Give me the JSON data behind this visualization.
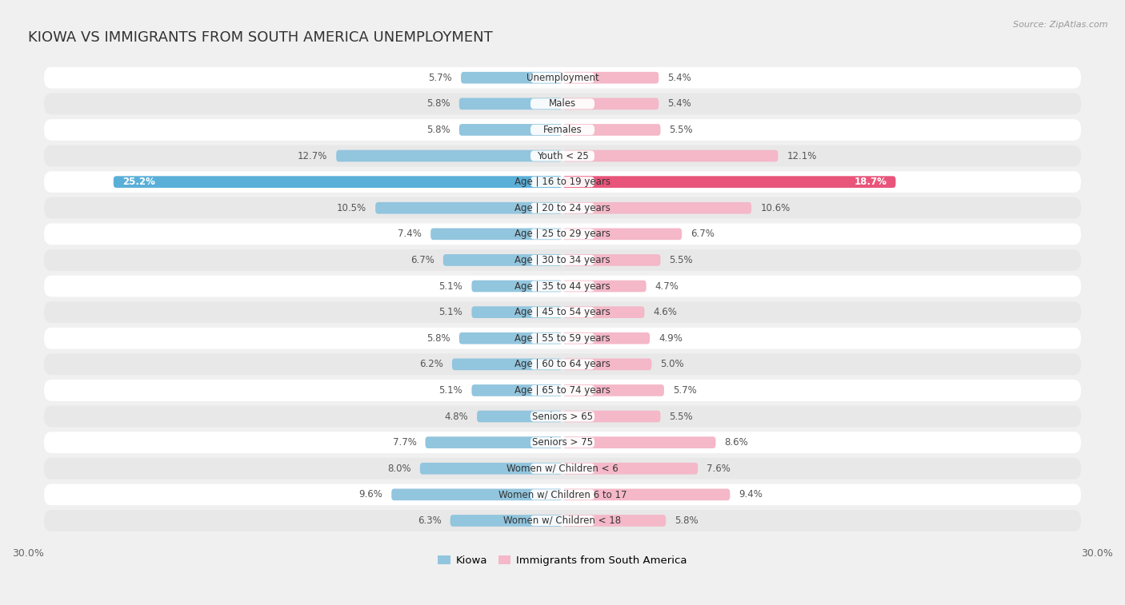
{
  "title": "KIOWA VS IMMIGRANTS FROM SOUTH AMERICA UNEMPLOYMENT",
  "source": "Source: ZipAtlas.com",
  "categories": [
    "Unemployment",
    "Males",
    "Females",
    "Youth < 25",
    "Age | 16 to 19 years",
    "Age | 20 to 24 years",
    "Age | 25 to 29 years",
    "Age | 30 to 34 years",
    "Age | 35 to 44 years",
    "Age | 45 to 54 years",
    "Age | 55 to 59 years",
    "Age | 60 to 64 years",
    "Age | 65 to 74 years",
    "Seniors > 65",
    "Seniors > 75",
    "Women w/ Children < 6",
    "Women w/ Children 6 to 17",
    "Women w/ Children < 18"
  ],
  "kiowa_values": [
    5.7,
    5.8,
    5.8,
    12.7,
    25.2,
    10.5,
    7.4,
    6.7,
    5.1,
    5.1,
    5.8,
    6.2,
    5.1,
    4.8,
    7.7,
    8.0,
    9.6,
    6.3
  ],
  "immigrant_values": [
    5.4,
    5.4,
    5.5,
    12.1,
    18.7,
    10.6,
    6.7,
    5.5,
    4.7,
    4.6,
    4.9,
    5.0,
    5.7,
    5.5,
    8.6,
    7.6,
    9.4,
    5.8
  ],
  "kiowa_color": "#92c5de",
  "immigrant_color": "#f4b8c8",
  "kiowa_highlight_color": "#5aafd9",
  "immigrant_highlight_color": "#e8547a",
  "axis_max": 30.0,
  "background_color": "#f0f0f0",
  "row_even_color": "#ffffff",
  "row_odd_color": "#e8e8e8",
  "title_fontsize": 13,
  "label_fontsize": 8.5,
  "value_fontsize": 8.5,
  "legend_fontsize": 9.5,
  "bar_height": 0.45
}
